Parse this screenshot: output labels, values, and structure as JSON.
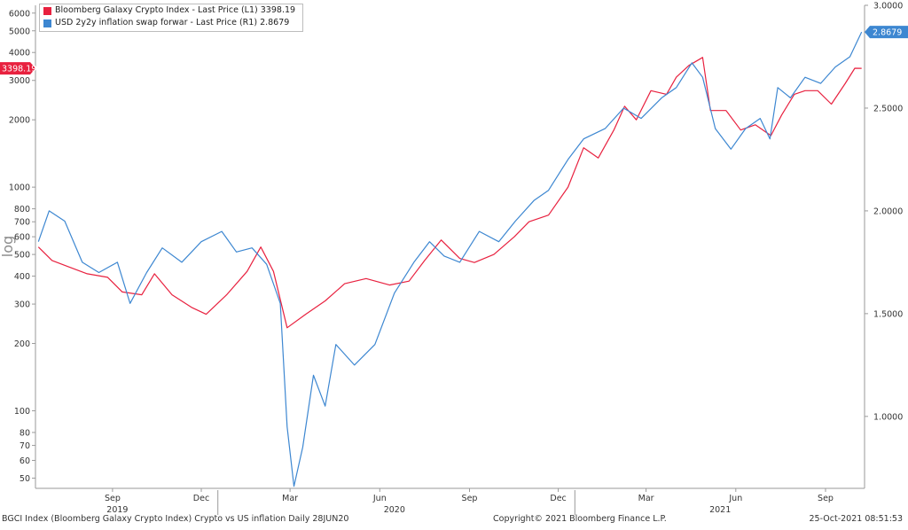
{
  "colors": {
    "series1": "#e8213f",
    "series2": "#3d87d1",
    "axis": "#9a9a9a"
  },
  "footer": {
    "left": "BGCI Index (Bloomberg Galaxy Crypto Index) Crypto vs US inflation  Daily 28JUN20",
    "center": "Copyright© 2021 Bloomberg Finance L.P.",
    "right": "25-Oct-2021  08:51:53"
  },
  "chart_data": {
    "type": "line",
    "left_axis": {
      "scale": "log",
      "label": "log",
      "range": [
        45,
        6500
      ],
      "ticks": [
        "6000",
        "5000",
        "4000",
        "3000",
        "2000",
        "1000",
        "800",
        "700",
        "600",
        "500",
        "400",
        "300",
        "200",
        "100",
        "80",
        "70",
        "60",
        "50"
      ]
    },
    "right_axis": {
      "scale": "linear",
      "range": [
        0.65,
        3.0
      ],
      "ticks": [
        "3.0000",
        "2.5000",
        "2.0000",
        "1.5000",
        "1.0000"
      ]
    },
    "x_axis": {
      "range": [
        "2019-06-28",
        "2021-10-25"
      ],
      "month_ticks": [
        "Sep",
        "Dec",
        "Mar",
        "Jun",
        "Sep",
        "Dec",
        "Mar",
        "Jun",
        "Sep"
      ],
      "year_labels": [
        "2019",
        "2020",
        "2021"
      ]
    },
    "series": [
      {
        "name": "Bloomberg Galaxy Crypto Index - Last Price (L1)",
        "axis": "left",
        "last_label": "3398.19",
        "legend_value": "3398.19",
        "points": [
          [
            "2019-07-01",
            540
          ],
          [
            "2019-07-15",
            470
          ],
          [
            "2019-08-01",
            440
          ],
          [
            "2019-08-20",
            410
          ],
          [
            "2019-09-10",
            395
          ],
          [
            "2019-09-25",
            340
          ],
          [
            "2019-10-15",
            330
          ],
          [
            "2019-10-28",
            410
          ],
          [
            "2019-11-15",
            330
          ],
          [
            "2019-12-05",
            290
          ],
          [
            "2019-12-20",
            270
          ],
          [
            "2020-01-10",
            330
          ],
          [
            "2020-01-31",
            420
          ],
          [
            "2020-02-14",
            540
          ],
          [
            "2020-02-27",
            420
          ],
          [
            "2020-03-12",
            235
          ],
          [
            "2020-03-31",
            270
          ],
          [
            "2020-04-20",
            310
          ],
          [
            "2020-05-10",
            370
          ],
          [
            "2020-06-01",
            390
          ],
          [
            "2020-06-25",
            365
          ],
          [
            "2020-07-15",
            380
          ],
          [
            "2020-07-31",
            470
          ],
          [
            "2020-08-17",
            580
          ],
          [
            "2020-09-05",
            480
          ],
          [
            "2020-09-20",
            460
          ],
          [
            "2020-10-10",
            500
          ],
          [
            "2020-10-31",
            600
          ],
          [
            "2020-11-15",
            700
          ],
          [
            "2020-12-05",
            750
          ],
          [
            "2020-12-25",
            1000
          ],
          [
            "2021-01-10",
            1500
          ],
          [
            "2021-01-25",
            1350
          ],
          [
            "2021-02-10",
            1800
          ],
          [
            "2021-02-21",
            2300
          ],
          [
            "2021-03-05",
            2000
          ],
          [
            "2021-03-20",
            2700
          ],
          [
            "2021-04-05",
            2600
          ],
          [
            "2021-04-15",
            3100
          ],
          [
            "2021-04-28",
            3500
          ],
          [
            "2021-05-12",
            3800
          ],
          [
            "2021-05-20",
            2200
          ],
          [
            "2021-06-05",
            2200
          ],
          [
            "2021-06-20",
            1800
          ],
          [
            "2021-07-05",
            1900
          ],
          [
            "2021-07-21",
            1700
          ],
          [
            "2021-08-01",
            2100
          ],
          [
            "2021-08-14",
            2600
          ],
          [
            "2021-08-25",
            2700
          ],
          [
            "2021-09-07",
            2700
          ],
          [
            "2021-09-21",
            2350
          ],
          [
            "2021-10-05",
            2900
          ],
          [
            "2021-10-15",
            3400
          ],
          [
            "2021-10-22",
            3398
          ]
        ]
      },
      {
        "name": "USD 2y2y inflation swap forwar - Last Price (R1)",
        "axis": "right",
        "last_label": "2.8679",
        "legend_value": "2.8679",
        "points": [
          [
            "2019-07-01",
            1.85
          ],
          [
            "2019-07-12",
            2.0
          ],
          [
            "2019-07-28",
            1.95
          ],
          [
            "2019-08-15",
            1.75
          ],
          [
            "2019-09-01",
            1.7
          ],
          [
            "2019-09-20",
            1.75
          ],
          [
            "2019-10-03",
            1.55
          ],
          [
            "2019-10-20",
            1.7
          ],
          [
            "2019-11-05",
            1.82
          ],
          [
            "2019-11-25",
            1.75
          ],
          [
            "2019-12-15",
            1.85
          ],
          [
            "2020-01-05",
            1.9
          ],
          [
            "2020-01-20",
            1.8
          ],
          [
            "2020-02-05",
            1.82
          ],
          [
            "2020-02-20",
            1.74
          ],
          [
            "2020-03-05",
            1.55
          ],
          [
            "2020-03-12",
            0.95
          ],
          [
            "2020-03-19",
            0.66
          ],
          [
            "2020-03-28",
            0.85
          ],
          [
            "2020-04-08",
            1.2
          ],
          [
            "2020-04-20",
            1.05
          ],
          [
            "2020-05-01",
            1.35
          ],
          [
            "2020-05-20",
            1.25
          ],
          [
            "2020-06-10",
            1.35
          ],
          [
            "2020-06-30",
            1.6
          ],
          [
            "2020-07-20",
            1.75
          ],
          [
            "2020-08-05",
            1.85
          ],
          [
            "2020-08-20",
            1.78
          ],
          [
            "2020-09-05",
            1.75
          ],
          [
            "2020-09-25",
            1.9
          ],
          [
            "2020-10-15",
            1.85
          ],
          [
            "2020-11-01",
            1.95
          ],
          [
            "2020-11-20",
            2.05
          ],
          [
            "2020-12-05",
            2.1
          ],
          [
            "2020-12-25",
            2.25
          ],
          [
            "2021-01-10",
            2.35
          ],
          [
            "2021-02-01",
            2.4
          ],
          [
            "2021-02-20",
            2.5
          ],
          [
            "2021-03-10",
            2.45
          ],
          [
            "2021-03-31",
            2.55
          ],
          [
            "2021-04-15",
            2.6
          ],
          [
            "2021-05-01",
            2.72
          ],
          [
            "2021-05-12",
            2.65
          ],
          [
            "2021-05-25",
            2.4
          ],
          [
            "2021-06-10",
            2.3
          ],
          [
            "2021-06-25",
            2.4
          ],
          [
            "2021-07-10",
            2.45
          ],
          [
            "2021-07-20",
            2.35
          ],
          [
            "2021-07-28",
            2.6
          ],
          [
            "2021-08-10",
            2.55
          ],
          [
            "2021-08-25",
            2.65
          ],
          [
            "2021-09-10",
            2.62
          ],
          [
            "2021-09-25",
            2.7
          ],
          [
            "2021-10-10",
            2.75
          ],
          [
            "2021-10-22",
            2.87
          ]
        ]
      }
    ]
  }
}
